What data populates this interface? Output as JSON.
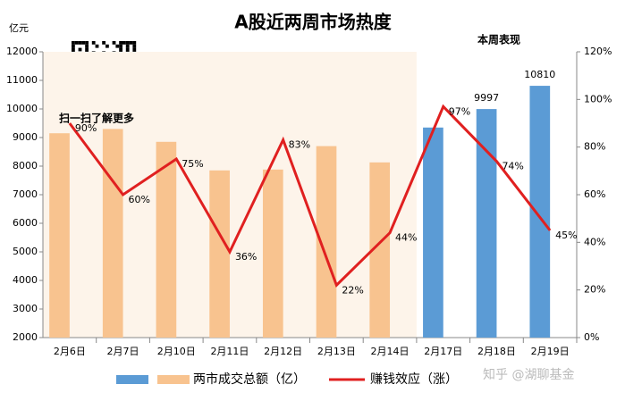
{
  "chart_data": {
    "type": "bar-line",
    "title": "A股近两周市场热度",
    "y_label": "亿元",
    "annotations": [
      "本周表现",
      "扫一扫了解更多"
    ],
    "watermark": "知乎 @湖聊基金",
    "categories": [
      "2月6日",
      "2月7日",
      "2月10日",
      "2月11日",
      "2月12日",
      "2月13日",
      "2月14日",
      "2月17日",
      "2月18日",
      "2月19日"
    ],
    "series": [
      {
        "name": "两市成交总额（亿）",
        "type": "bar",
        "colors": [
          "#f8c38f",
          "#f8c38f",
          "#f8c38f",
          "#f8c38f",
          "#f8c38f",
          "#f8c38f",
          "#f8c38f",
          "#5b9bd5",
          "#5b9bd5",
          "#5b9bd5"
        ],
        "values": [
          9150,
          9300,
          8850,
          7850,
          7880,
          8700,
          8130,
          9350,
          9997,
          10810
        ],
        "value_labels": [
          null,
          null,
          null,
          null,
          null,
          null,
          null,
          null,
          "9997",
          "10810"
        ],
        "label_color": "#e02020"
      },
      {
        "name": "赚钱效应（涨）",
        "type": "line",
        "axis": "y2",
        "color": "#e02020",
        "values": [
          90,
          60,
          75,
          36,
          83,
          22,
          44,
          97,
          74,
          45
        ],
        "value_labels": [
          "90%",
          "60%",
          "75%",
          "36%",
          "83%",
          "22%",
          "44%",
          "97%",
          "74%",
          "45%"
        ],
        "value_label_colors": [
          "#000",
          "#000",
          "#000",
          "#000",
          "#000",
          "#000",
          "#000",
          "#000",
          "#000",
          "#e02020"
        ]
      }
    ],
    "ylim": [
      2000,
      12000
    ],
    "yticks": [
      2000,
      3000,
      4000,
      5000,
      6000,
      7000,
      8000,
      9000,
      10000,
      11000,
      12000
    ],
    "y2lim": [
      0,
      120
    ],
    "y2ticks": [
      {
        "value": 0,
        "label": "0%"
      },
      {
        "value": 20,
        "label": "20%"
      },
      {
        "value": 40,
        "label": "40%"
      },
      {
        "value": 60,
        "label": "60%"
      },
      {
        "value": 80,
        "label": "80%"
      },
      {
        "value": 100,
        "label": "100%"
      },
      {
        "value": 120,
        "label": "120%"
      }
    ],
    "grid": false,
    "legend": "bottom"
  }
}
